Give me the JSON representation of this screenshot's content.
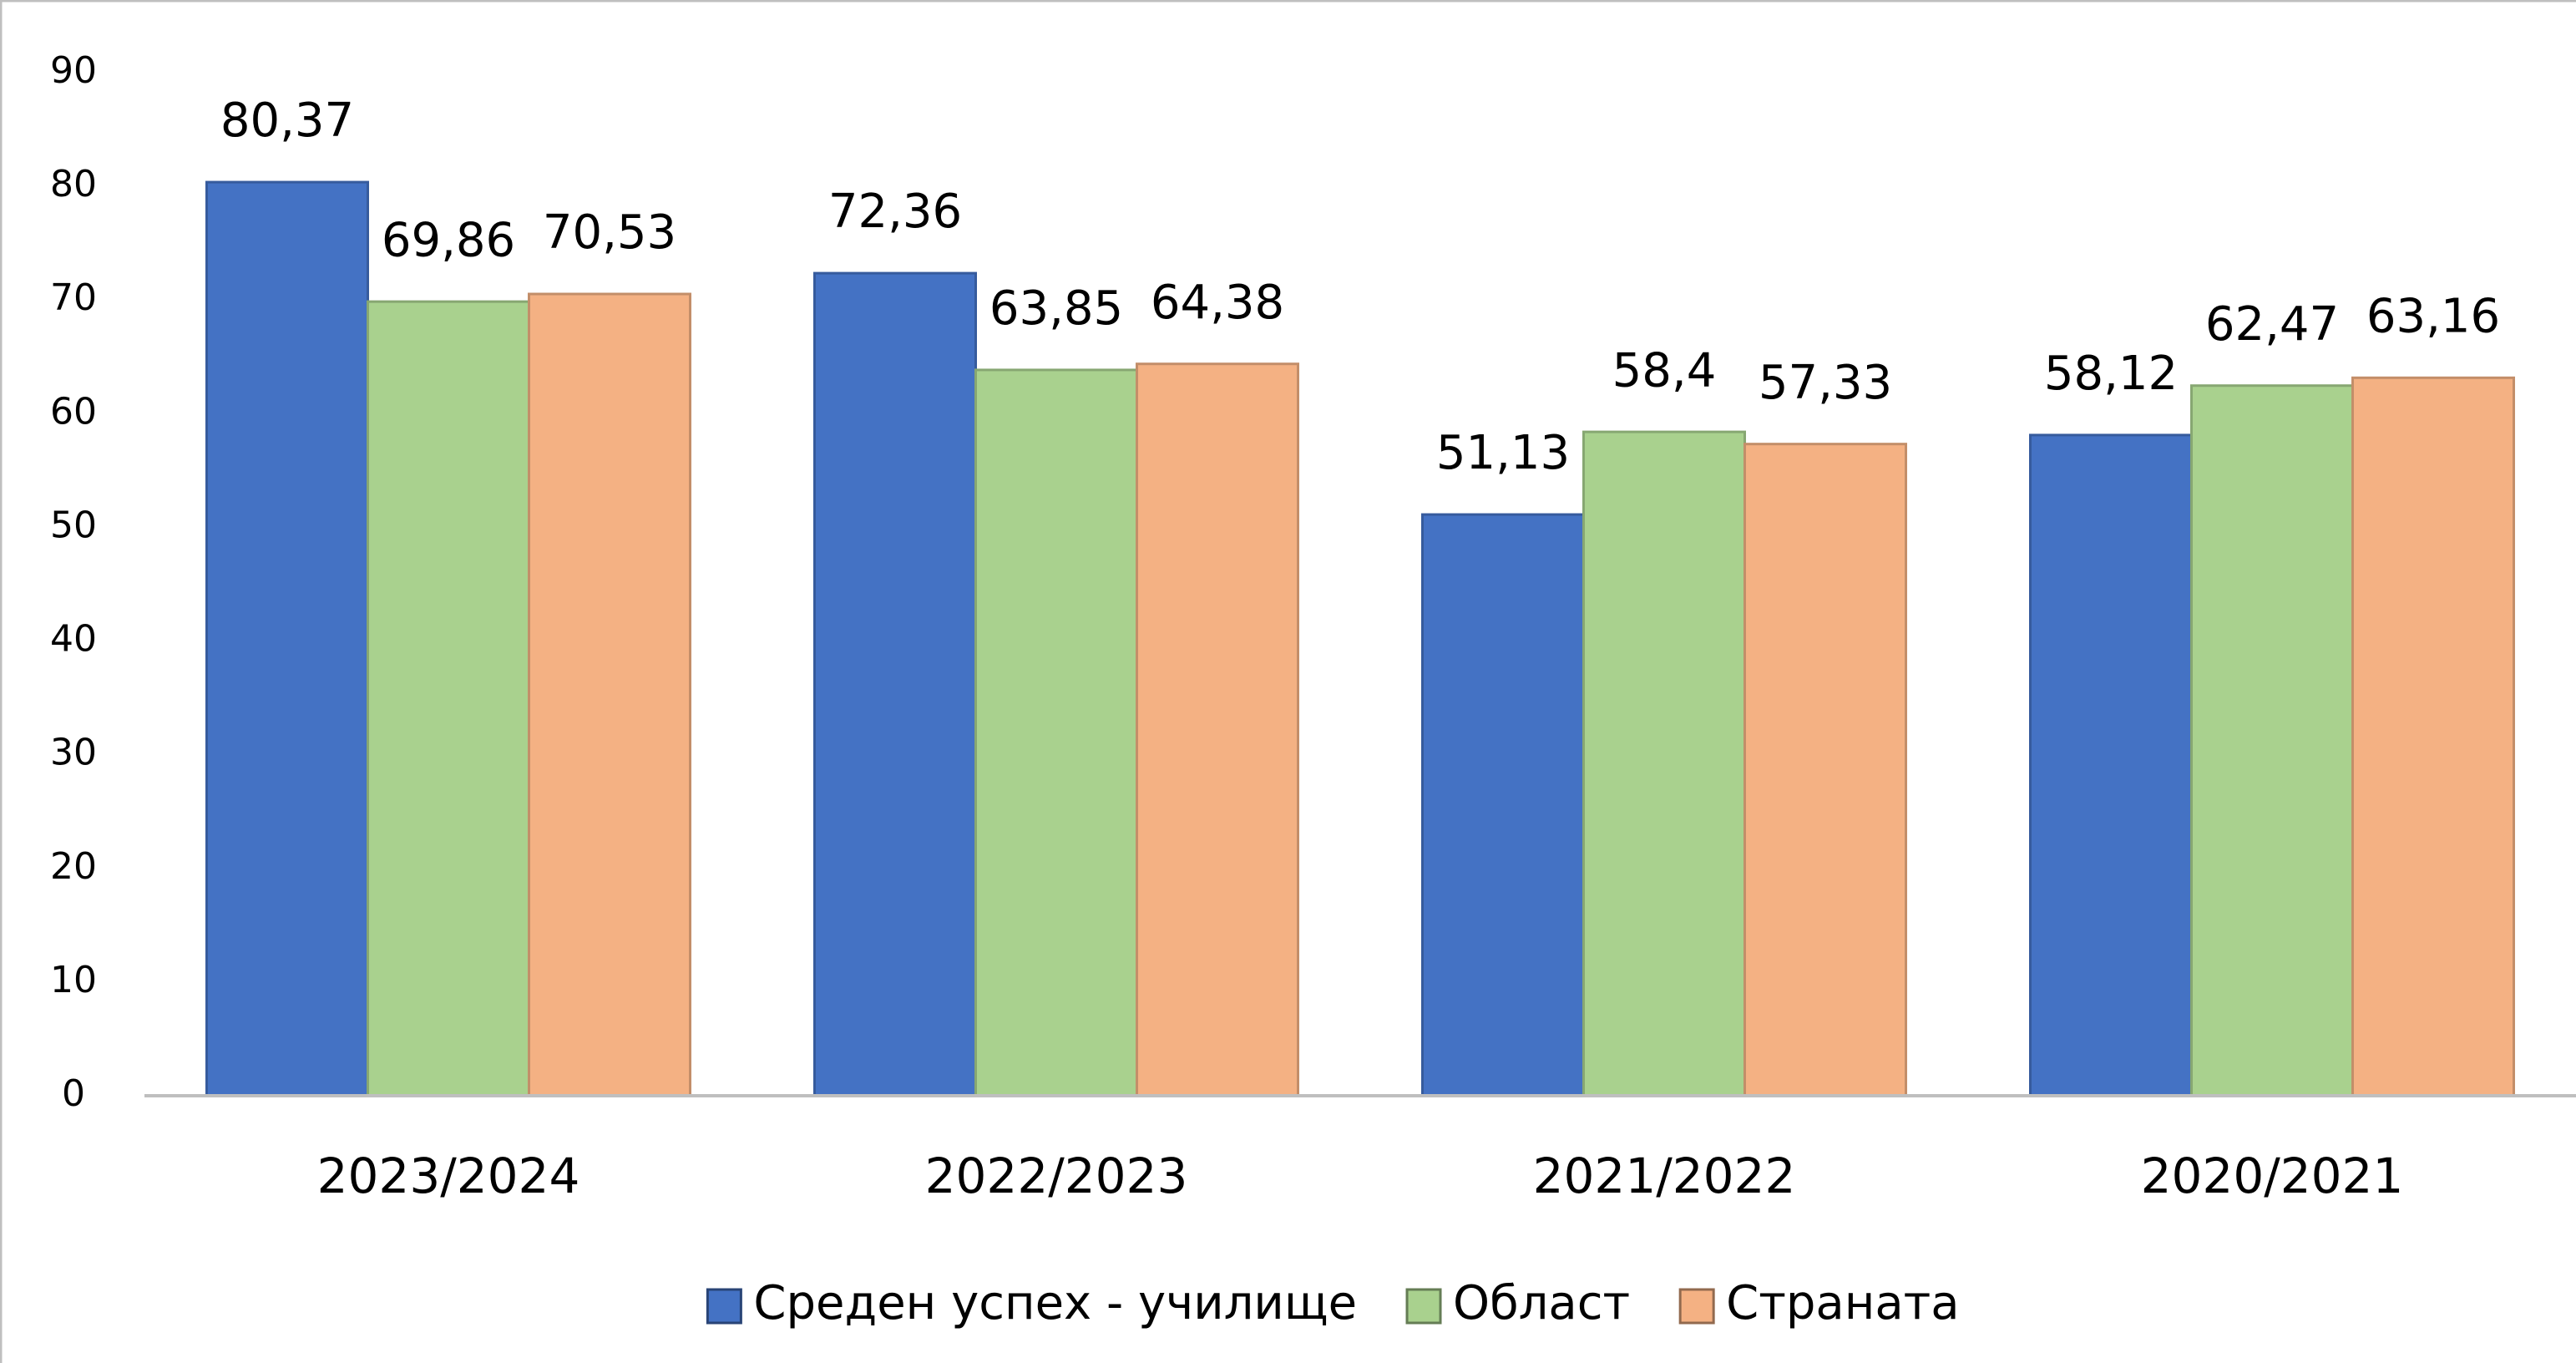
{
  "chart_data": {
    "type": "bar",
    "categories": [
      "2023/2024",
      "2022/2023",
      "2021/2022",
      "2020/2021"
    ],
    "series": [
      {
        "name": "Среден успех - училище",
        "color": "#4472c4",
        "values": [
          80.37,
          72.36,
          51.13,
          58.12
        ],
        "value_labels": [
          "80,37",
          "72,36",
          "51,13",
          "58,12"
        ]
      },
      {
        "name": "Област",
        "color": "#a9d18e",
        "values": [
          69.86,
          63.85,
          58.4,
          62.47
        ],
        "value_labels": [
          "69,86",
          "63,85",
          "58,4",
          "62,47"
        ]
      },
      {
        "name": "Страната",
        "color": "#f4b183",
        "values": [
          70.53,
          64.38,
          57.33,
          63.16
        ],
        "value_labels": [
          "70,53",
          "64,38",
          "57,33",
          "63,16"
        ]
      }
    ],
    "ylim": [
      0,
      90
    ],
    "yticks": [
      0,
      10,
      20,
      30,
      40,
      50,
      60,
      70,
      80,
      90
    ],
    "grid": false,
    "legend": "bottom"
  }
}
